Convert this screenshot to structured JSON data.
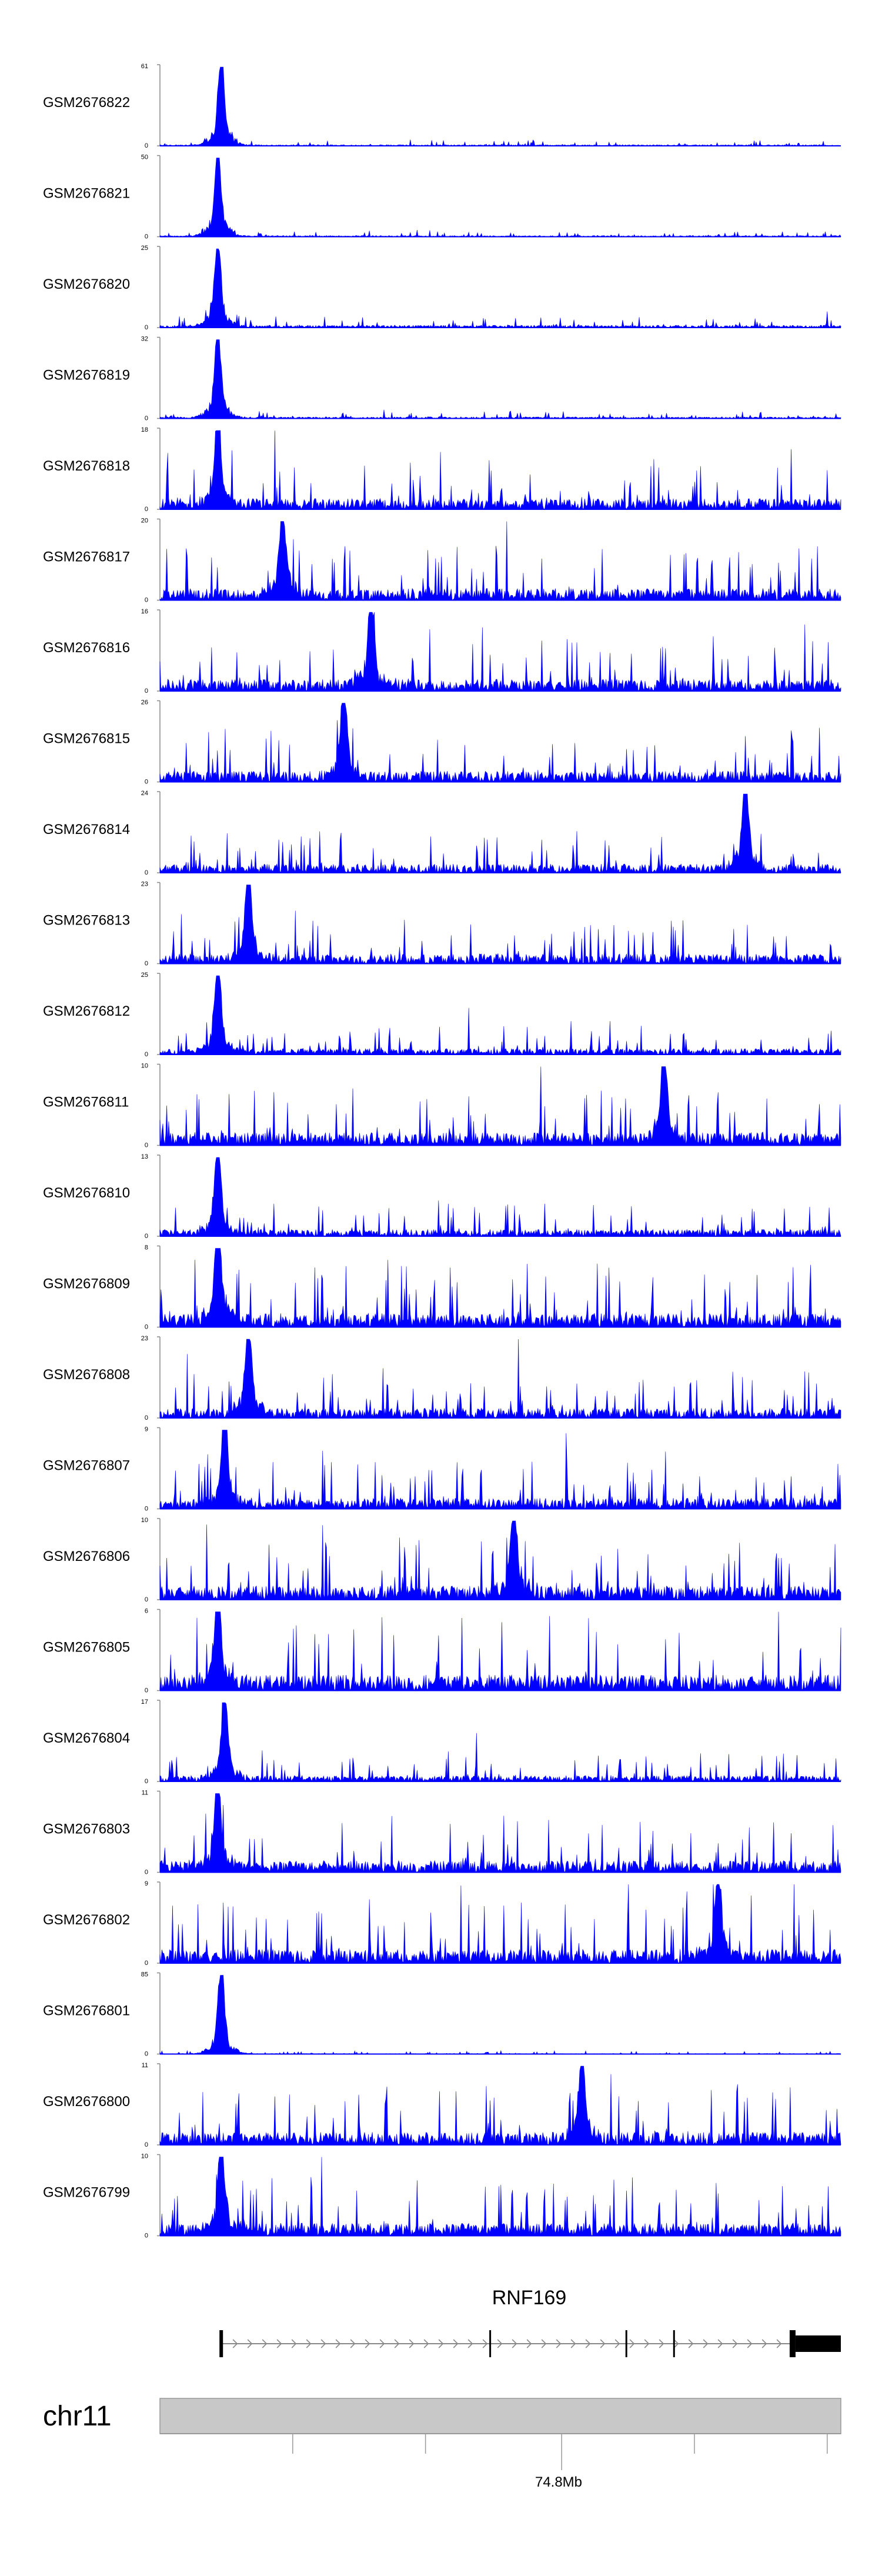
{
  "chart_data": {
    "type": "area",
    "color": "#0000ff",
    "tracks": [
      {
        "name": "GSM2676822",
        "ymax": 61,
        "ymin": 0,
        "peak_pos": 0.09,
        "peak_frac": 1.0,
        "noise": 0.06,
        "seed": 11
      },
      {
        "name": "GSM2676821",
        "ymax": 50,
        "ymin": 0,
        "peak_pos": 0.085,
        "peak_frac": 0.98,
        "noise": 0.06,
        "seed": 12
      },
      {
        "name": "GSM2676820",
        "ymax": 25,
        "ymin": 0,
        "peak_pos": 0.085,
        "peak_frac": 0.98,
        "noise": 0.12,
        "seed": 13
      },
      {
        "name": "GSM2676819",
        "ymax": 32,
        "ymin": 0,
        "peak_pos": 0.085,
        "peak_frac": 0.96,
        "noise": 0.08,
        "seed": 14
      },
      {
        "name": "GSM2676818",
        "ymax": 18,
        "ymin": 0,
        "peak_pos": 0.085,
        "peak_frac": 0.95,
        "noise": 0.55,
        "seed": 15
      },
      {
        "name": "GSM2676817",
        "ymax": 20,
        "ymin": 0,
        "peak_pos": 0.18,
        "peak_frac": 1.0,
        "noise": 0.6,
        "seed": 16
      },
      {
        "name": "GSM2676816",
        "ymax": 16,
        "ymin": 0,
        "peak_pos": 0.31,
        "peak_frac": 1.0,
        "noise": 0.6,
        "seed": 17
      },
      {
        "name": "GSM2676815",
        "ymax": 26,
        "ymin": 0,
        "peak_pos": 0.27,
        "peak_frac": 1.0,
        "noise": 0.55,
        "seed": 18
      },
      {
        "name": "GSM2676814",
        "ymax": 24,
        "ymin": 0,
        "peak_pos": 0.86,
        "peak_frac": 1.0,
        "noise": 0.45,
        "seed": 19
      },
      {
        "name": "GSM2676813",
        "ymax": 23,
        "ymin": 0,
        "peak_pos": 0.13,
        "peak_frac": 1.0,
        "noise": 0.5,
        "seed": 20
      },
      {
        "name": "GSM2676812",
        "ymax": 25,
        "ymin": 0,
        "peak_pos": 0.085,
        "peak_frac": 0.95,
        "noise": 0.3,
        "seed": 21
      },
      {
        "name": "GSM2676811",
        "ymax": 10,
        "ymin": 0,
        "peak_pos": 0.74,
        "peak_frac": 1.0,
        "noise": 0.65,
        "seed": 22
      },
      {
        "name": "GSM2676810",
        "ymax": 13,
        "ymin": 0,
        "peak_pos": 0.085,
        "peak_frac": 0.95,
        "noise": 0.35,
        "seed": 23
      },
      {
        "name": "GSM2676809",
        "ymax": 8,
        "ymin": 0,
        "peak_pos": 0.085,
        "peak_frac": 1.0,
        "noise": 0.7,
        "seed": 24
      },
      {
        "name": "GSM2676808",
        "ymax": 23,
        "ymin": 0,
        "peak_pos": 0.13,
        "peak_frac": 1.0,
        "noise": 0.5,
        "seed": 25
      },
      {
        "name": "GSM2676807",
        "ymax": 9,
        "ymin": 0,
        "peak_pos": 0.095,
        "peak_frac": 1.0,
        "noise": 0.55,
        "seed": 26
      },
      {
        "name": "GSM2676806",
        "ymax": 10,
        "ymin": 0,
        "peak_pos": 0.52,
        "peak_frac": 0.95,
        "noise": 0.7,
        "seed": 27
      },
      {
        "name": "GSM2676805",
        "ymax": 6,
        "ymin": 0,
        "peak_pos": 0.085,
        "peak_frac": 1.0,
        "noise": 0.8,
        "seed": 28
      },
      {
        "name": "GSM2676804",
        "ymax": 17,
        "ymin": 0,
        "peak_pos": 0.095,
        "peak_frac": 1.0,
        "noise": 0.3,
        "seed": 29
      },
      {
        "name": "GSM2676803",
        "ymax": 11,
        "ymin": 0,
        "peak_pos": 0.085,
        "peak_frac": 1.0,
        "noise": 0.6,
        "seed": 30
      },
      {
        "name": "GSM2676802",
        "ymax": 9,
        "ymin": 0,
        "peak_pos": 0.82,
        "peak_frac": 1.0,
        "noise": 0.7,
        "seed": 31
      },
      {
        "name": "GSM2676801",
        "ymax": 85,
        "ymin": 0,
        "peak_pos": 0.09,
        "peak_frac": 1.0,
        "noise": 0.03,
        "seed": 32
      },
      {
        "name": "GSM2676800",
        "ymax": 11,
        "ymin": 0,
        "peak_pos": 0.62,
        "peak_frac": 0.95,
        "noise": 0.65,
        "seed": 33
      },
      {
        "name": "GSM2676799",
        "ymax": 10,
        "ymin": 0,
        "peak_pos": 0.09,
        "peak_frac": 1.0,
        "noise": 0.65,
        "seed": 34
      }
    ],
    "gene": {
      "name": "RNF169",
      "strand": "+",
      "exons": [
        0.09,
        0.485,
        0.685,
        0.755,
        0.93
      ]
    },
    "chromosome": "chr11",
    "axis": {
      "tick_labels": [
        "74.8Mb"
      ],
      "labeled_tick": 0.59,
      "minor_ticks": [
        0.195,
        0.39,
        0.785,
        0.98
      ]
    }
  }
}
